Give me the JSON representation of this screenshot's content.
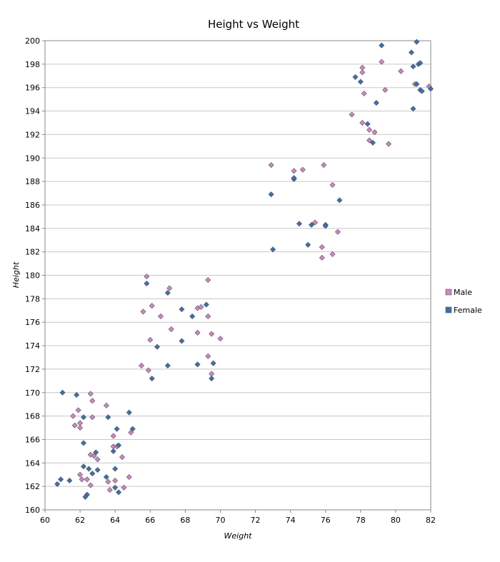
{
  "chart_data": {
    "type": "scatter",
    "title": "Height vs Weight",
    "xlabel": "Weight",
    "ylabel": "Height",
    "xlim": [
      60,
      82
    ],
    "ylim": [
      160,
      200
    ],
    "xticks": [
      "60",
      "62",
      "64",
      "66",
      "68",
      "70",
      "72",
      "74",
      "76",
      "78",
      "80",
      "82"
    ],
    "yticks": [
      "160",
      "162",
      "164",
      "166",
      "168",
      "170",
      "172",
      "174",
      "176",
      "178",
      "180",
      "182",
      "184",
      "186",
      "188",
      "190",
      "192",
      "194",
      "196",
      "198",
      "200"
    ],
    "grid": "horizontal",
    "legend_position": "right",
    "series": [
      {
        "name": "Male",
        "color": "#cc88bb",
        "points": [
          [
            62.6,
            169.9
          ],
          [
            62.7,
            169.3
          ],
          [
            63.5,
            168.9
          ],
          [
            61.9,
            168.5
          ],
          [
            62.0,
            167.4
          ],
          [
            61.6,
            168.0
          ],
          [
            62.7,
            167.9
          ],
          [
            61.7,
            167.2
          ],
          [
            62.0,
            167.0
          ],
          [
            64.9,
            166.6
          ],
          [
            63.9,
            166.3
          ],
          [
            63.9,
            165.4
          ],
          [
            64.1,
            165.4
          ],
          [
            62.6,
            164.7
          ],
          [
            62.8,
            164.6
          ],
          [
            63.0,
            164.3
          ],
          [
            64.4,
            164.5
          ],
          [
            62.0,
            163.0
          ],
          [
            62.1,
            162.6
          ],
          [
            62.4,
            162.6
          ],
          [
            63.6,
            162.4
          ],
          [
            64.0,
            162.5
          ],
          [
            64.8,
            162.8
          ],
          [
            62.6,
            162.1
          ],
          [
            64.5,
            161.9
          ],
          [
            63.7,
            161.7
          ],
          [
            65.8,
            179.9
          ],
          [
            69.3,
            179.6
          ],
          [
            67.1,
            178.9
          ],
          [
            66.1,
            177.4
          ],
          [
            65.6,
            176.9
          ],
          [
            68.7,
            177.2
          ],
          [
            68.9,
            177.3
          ],
          [
            69.3,
            176.5
          ],
          [
            66.6,
            176.5
          ],
          [
            67.2,
            175.4
          ],
          [
            68.7,
            175.1
          ],
          [
            69.5,
            175.0
          ],
          [
            70.0,
            174.6
          ],
          [
            66.0,
            174.5
          ],
          [
            69.3,
            173.1
          ],
          [
            65.5,
            172.3
          ],
          [
            65.9,
            171.9
          ],
          [
            69.5,
            171.6
          ],
          [
            72.9,
            189.4
          ],
          [
            75.9,
            189.4
          ],
          [
            74.2,
            188.9
          ],
          [
            74.7,
            189.0
          ],
          [
            76.4,
            187.7
          ],
          [
            75.4,
            184.5
          ],
          [
            76.7,
            183.7
          ],
          [
            75.8,
            182.4
          ],
          [
            76.4,
            181.8
          ],
          [
            75.8,
            181.5
          ],
          [
            78.1,
            197.7
          ],
          [
            79.2,
            198.2
          ],
          [
            80.3,
            197.4
          ],
          [
            78.1,
            197.3
          ],
          [
            81.9,
            196.1
          ],
          [
            81.1,
            196.3
          ],
          [
            79.4,
            195.8
          ],
          [
            78.2,
            195.5
          ],
          [
            77.5,
            193.7
          ],
          [
            78.1,
            193.0
          ],
          [
            78.5,
            192.4
          ],
          [
            78.8,
            192.2
          ],
          [
            78.5,
            191.5
          ],
          [
            79.6,
            191.2
          ]
        ]
      },
      {
        "name": "Female",
        "color": "#3f6fa8",
        "points": [
          [
            61.0,
            170.0
          ],
          [
            61.8,
            169.8
          ],
          [
            64.8,
            168.3
          ],
          [
            62.2,
            167.9
          ],
          [
            63.6,
            167.9
          ],
          [
            65.0,
            166.9
          ],
          [
            64.1,
            166.9
          ],
          [
            62.2,
            165.7
          ],
          [
            64.2,
            165.5
          ],
          [
            63.9,
            165.0
          ],
          [
            62.9,
            164.9
          ],
          [
            62.2,
            163.7
          ],
          [
            62.5,
            163.5
          ],
          [
            63.0,
            163.4
          ],
          [
            64.0,
            163.5
          ],
          [
            62.7,
            163.1
          ],
          [
            63.5,
            162.8
          ],
          [
            60.7,
            162.2
          ],
          [
            61.4,
            162.5
          ],
          [
            60.9,
            162.6
          ],
          [
            64.0,
            161.9
          ],
          [
            62.4,
            161.3
          ],
          [
            62.3,
            161.1
          ],
          [
            64.2,
            161.5
          ],
          [
            65.8,
            179.3
          ],
          [
            67.0,
            178.5
          ],
          [
            69.2,
            177.5
          ],
          [
            67.8,
            177.1
          ],
          [
            68.4,
            176.5
          ],
          [
            67.8,
            174.4
          ],
          [
            66.4,
            173.9
          ],
          [
            69.6,
            172.5
          ],
          [
            67.0,
            172.3
          ],
          [
            68.7,
            172.4
          ],
          [
            66.1,
            171.2
          ],
          [
            69.5,
            171.2
          ],
          [
            72.9,
            186.9
          ],
          [
            74.2,
            188.2
          ],
          [
            74.2,
            188.3
          ],
          [
            76.8,
            186.4
          ],
          [
            74.5,
            184.4
          ],
          [
            75.2,
            184.3
          ],
          [
            76.0,
            184.3
          ],
          [
            76.0,
            184.2
          ],
          [
            75.0,
            182.6
          ],
          [
            73.0,
            182.2
          ],
          [
            79.2,
            199.6
          ],
          [
            81.2,
            199.9
          ],
          [
            80.9,
            199.0
          ],
          [
            81.3,
            198.0
          ],
          [
            81.4,
            198.1
          ],
          [
            81.0,
            197.8
          ],
          [
            77.7,
            196.9
          ],
          [
            78.0,
            196.5
          ],
          [
            81.2,
            196.3
          ],
          [
            81.4,
            195.8
          ],
          [
            81.5,
            195.7
          ],
          [
            82.0,
            195.9
          ],
          [
            78.9,
            194.7
          ],
          [
            81.0,
            194.2
          ],
          [
            78.4,
            192.9
          ],
          [
            78.7,
            191.3
          ]
        ]
      }
    ]
  }
}
